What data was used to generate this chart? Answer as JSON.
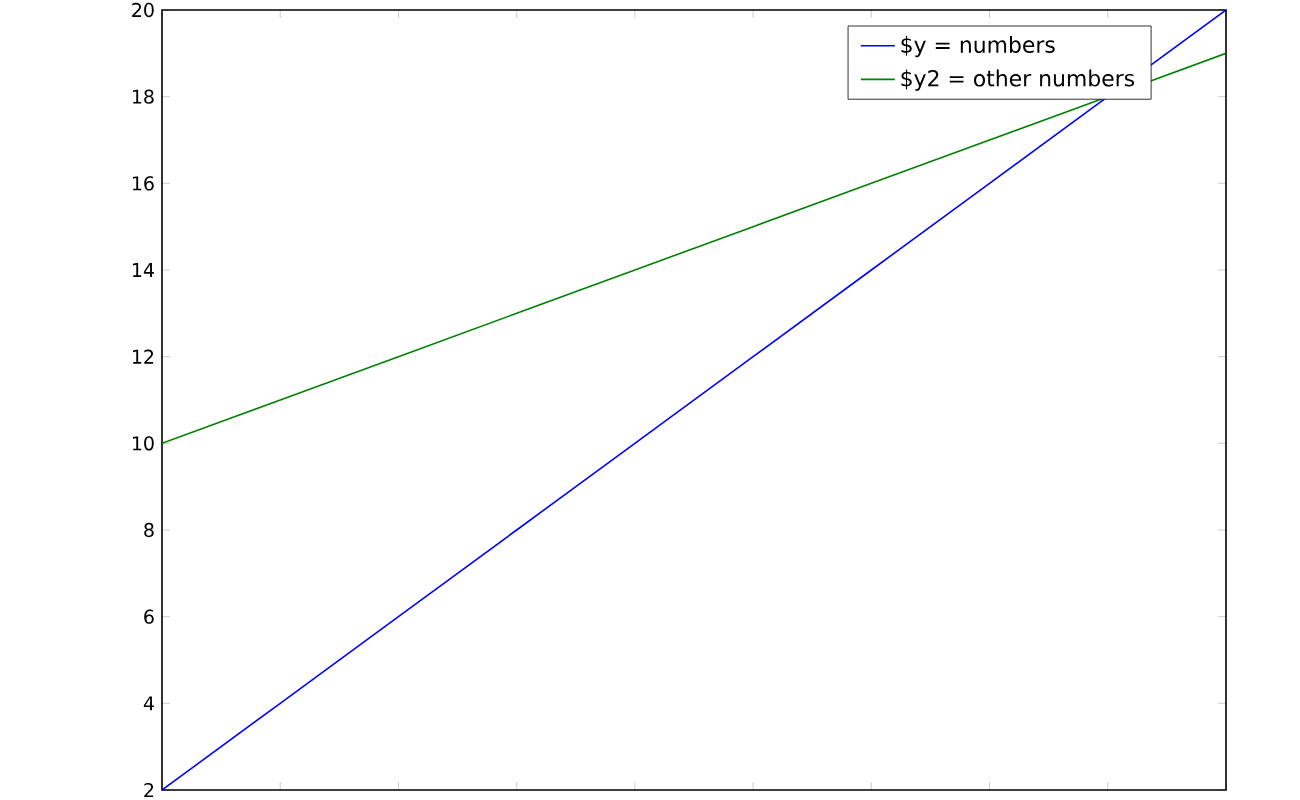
{
  "chart_data": {
    "type": "line",
    "categories": [
      null,
      null,
      null,
      null,
      null,
      null,
      null,
      null,
      null,
      null
    ],
    "series": [
      {
        "name": "$y = numbers",
        "color": "#0000ff",
        "values": [
          2,
          4,
          6,
          8,
          10,
          12,
          14,
          16,
          18,
          20
        ]
      },
      {
        "name": "$y2 = other numbers",
        "color": "#008000",
        "values": [
          10,
          11,
          12,
          13,
          14,
          15,
          16,
          17,
          18,
          19
        ]
      }
    ],
    "ylim": [
      2,
      20
    ],
    "yticks": [
      2,
      4,
      6,
      8,
      10,
      12,
      14,
      16,
      18,
      20
    ],
    "legend": "top right",
    "marker": "none",
    "line_style": "solid"
  }
}
